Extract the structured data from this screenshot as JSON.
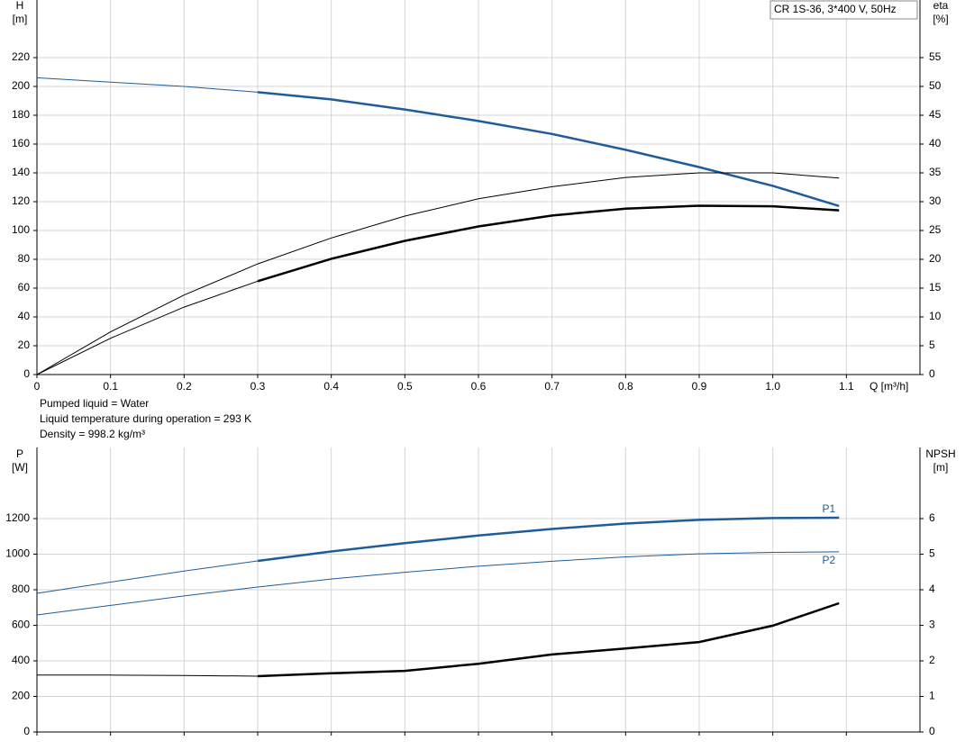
{
  "chart_data": [
    {
      "type": "line",
      "title": "CR 1S-36, 3*400 V, 50Hz",
      "ylabel": "H",
      "ylabel_unit": "[m]",
      "y2label": "eta",
      "y2label_unit": "[%]",
      "xlabel": "Q [m³/h]",
      "notes": [
        "Pumped liquid = Water",
        "Liquid temperature during operation = 293 K",
        "Density = 998.2 kg/m³"
      ],
      "xlim": [
        0,
        1.2
      ],
      "ylim": [
        0,
        260
      ],
      "y2lim": [
        0,
        65
      ],
      "xticks": [
        0,
        0.1,
        0.2,
        0.3,
        0.4,
        0.5,
        0.6,
        0.7,
        0.8,
        0.9,
        {
          "value": 1,
          "label": "1.0"
        },
        1.1
      ],
      "yticks": [
        0,
        20,
        40,
        60,
        80,
        100,
        120,
        140,
        160,
        180,
        200,
        220
      ],
      "y2ticks": [
        0,
        5,
        10,
        15,
        20,
        25,
        30,
        35,
        40,
        45,
        50,
        55
      ],
      "grid": true,
      "xtick_labels": true,
      "thick_from_x": 0.3,
      "x": [
        0,
        0.1,
        0.2,
        0.3,
        0.4,
        0.5,
        0.6,
        0.7,
        0.8,
        0.9,
        1.0,
        1.09
      ],
      "series": [
        {
          "color": "#1f5c99",
          "values": [
            206,
            203,
            200,
            196,
            191,
            184,
            176,
            167,
            156,
            144,
            131,
            117
          ]
        },
        {
          "color": "#000000",
          "axis": "y2",
          "thick": false,
          "values": [
            0,
            7.4,
            13.8,
            19.2,
            23.7,
            27.5,
            30.5,
            32.6,
            34.2,
            35.0,
            35.0,
            34.1
          ]
        },
        {
          "color": "#000000",
          "axis": "y2",
          "values": [
            0,
            6.3,
            11.7,
            16.2,
            20.1,
            23.2,
            25.7,
            27.6,
            28.8,
            29.3,
            29.2,
            28.5
          ]
        }
      ]
    },
    {
      "type": "line",
      "ylabel": "P",
      "ylabel_unit": "[W]",
      "y2label": "NPSH",
      "y2label_unit": "[m]",
      "xlim": [
        0,
        1.2
      ],
      "ylim": [
        0,
        1600
      ],
      "y2lim": [
        0,
        8
      ],
      "xticks": [
        0,
        0.1,
        0.2,
        0.3,
        0.4,
        0.5,
        0.6,
        0.7,
        0.8,
        0.9,
        1,
        1.1
      ],
      "yticks": [
        0,
        200,
        400,
        600,
        800,
        1000,
        1200
      ],
      "y2ticks": [
        0,
        1,
        2,
        3,
        4,
        5,
        6
      ],
      "grid": true,
      "xtick_labels": false,
      "thick_from_x": 0.3,
      "x": [
        0,
        0.1,
        0.2,
        0.3,
        0.4,
        0.5,
        0.6,
        0.7,
        0.8,
        0.9,
        1.0,
        1.09
      ],
      "series": [
        {
          "name": "P1",
          "label_position": "above",
          "color": "#1f5c99",
          "values": [
            780,
            843,
            905,
            962,
            1015,
            1062,
            1105,
            1142,
            1172,
            1193,
            1203,
            1205
          ]
        },
        {
          "name": "P2",
          "label_position": "below",
          "color": "#1f5c99",
          "thick": false,
          "values": [
            658,
            712,
            765,
            815,
            860,
            898,
            932,
            960,
            985,
            1002,
            1010,
            1013
          ]
        },
        {
          "color": "#000000",
          "axis": "y2",
          "values": [
            1.6,
            1.6,
            1.59,
            1.57,
            1.65,
            1.72,
            1.92,
            2.18,
            2.35,
            2.53,
            2.99,
            3.62
          ]
        }
      ]
    }
  ]
}
